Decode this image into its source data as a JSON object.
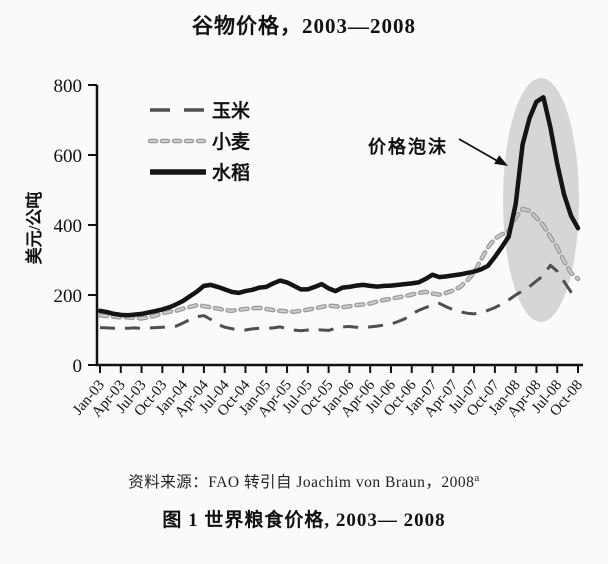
{
  "figure": {
    "title": "谷物价格，2003—2008",
    "source_text": "资料来源：FAO 转引自 Joachim von Braun，2008",
    "source_superscript": "a",
    "caption": "图 1  世界粮食价格, 2003— 2008"
  },
  "chart_data": {
    "type": "line",
    "title": "谷物价格，2003—2008",
    "xlabel": "",
    "ylabel": "美元/公吨",
    "ylim": [
      0,
      800
    ],
    "yticks": [
      0,
      200,
      400,
      600,
      800
    ],
    "grid": false,
    "legend_position": "top-left",
    "x_unit": "monthly, Jan-03 to Oct-08",
    "months_per_tick": 3,
    "x_tick_labels": [
      "Jan-03",
      "Apr-03",
      "Jul-03",
      "Oct-03",
      "Jan-04",
      "Apr-04",
      "Jul-04",
      "Oct-04",
      "Jan-05",
      "Apr-05",
      "Jul-05",
      "Oct-05",
      "Jan-06",
      "Apr-06",
      "Jul-06",
      "Oct-06",
      "Jan-07",
      "Apr-07",
      "Jul-07",
      "Oct-07",
      "Jan-08",
      "Apr-08",
      "Jul-08",
      "Oct-08"
    ],
    "annotation": {
      "label": "价格泡沫",
      "target": "2008 price spike"
    },
    "bubble_color": "#d6d6d6",
    "series": [
      {
        "id": "corn",
        "name": "玉米",
        "style": "long-dash",
        "color": "#4f4f4f",
        "values": [
          107,
          106,
          105,
          105,
          105,
          106,
          105,
          106,
          107,
          108,
          109,
          111,
          120,
          130,
          138,
          141,
          130,
          116,
          108,
          104,
          100,
          100,
          103,
          105,
          104,
          106,
          109,
          104,
          100,
          98,
          100,
          102,
          100,
          99,
          105,
          109,
          110,
          108,
          107,
          109,
          111,
          114,
          117,
          124,
          132,
          146,
          156,
          164,
          172,
          176,
          166,
          158,
          152,
          148,
          146,
          151,
          156,
          164,
          174,
          186,
          200,
          212,
          224,
          240,
          256,
          285,
          268,
          238,
          208,
          190
        ]
      },
      {
        "id": "wheat",
        "name": "小麦",
        "style": "short-dash",
        "color": "#9a9a9a",
        "color2": "#cccccc",
        "values": [
          142,
          140,
          138,
          136,
          136,
          134,
          133,
          136,
          141,
          148,
          152,
          155,
          161,
          166,
          171,
          168,
          165,
          161,
          157,
          155,
          158,
          160,
          162,
          163,
          160,
          157,
          155,
          153,
          152,
          155,
          158,
          162,
          166,
          170,
          168,
          165,
          168,
          171,
          173,
          176,
          181,
          186,
          189,
          193,
          197,
          201,
          206,
          209,
          204,
          201,
          206,
          213,
          223,
          241,
          263,
          301,
          336,
          361,
          373,
          383,
          422,
          446,
          441,
          421,
          399,
          366,
          336,
          296,
          263,
          246
        ]
      },
      {
        "id": "rice",
        "name": "水稻",
        "style": "solid",
        "color": "#141414",
        "values": [
          155,
          151,
          146,
          143,
          142,
          144,
          146,
          150,
          154,
          159,
          165,
          173,
          183,
          197,
          210,
          226,
          229,
          223,
          216,
          209,
          206,
          211,
          215,
          221,
          223,
          233,
          241,
          236,
          226,
          216,
          216,
          223,
          231,
          219,
          211,
          221,
          223,
          227,
          229,
          226,
          224,
          226,
          227,
          229,
          231,
          233,
          236,
          246,
          258,
          251,
          253,
          256,
          259,
          263,
          267,
          273,
          283,
          309,
          337,
          367,
          460,
          630,
          705,
          752,
          765,
          680,
          575,
          487,
          426,
          391
        ]
      }
    ]
  }
}
